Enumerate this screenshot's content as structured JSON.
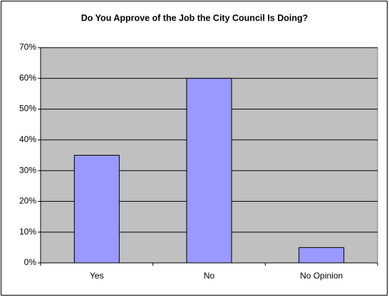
{
  "chart_data": {
    "type": "bar",
    "title": "Do You Approve of the Job the City Council Is Doing?",
    "categories": [
      "Yes",
      "No",
      "No Opinion"
    ],
    "values": [
      35,
      60,
      5
    ],
    "color": "#9999ff",
    "ylim": [
      0,
      70
    ],
    "yticks": [
      {
        "value": 0,
        "label": "0%"
      },
      {
        "value": 10,
        "label": "10%"
      },
      {
        "value": 20,
        "label": "20%"
      },
      {
        "value": 30,
        "label": "30%"
      },
      {
        "value": 40,
        "label": "40%"
      },
      {
        "value": 50,
        "label": "50%"
      },
      {
        "value": 60,
        "label": "60%"
      },
      {
        "value": 70,
        "label": "70%"
      }
    ],
    "grid": true
  }
}
